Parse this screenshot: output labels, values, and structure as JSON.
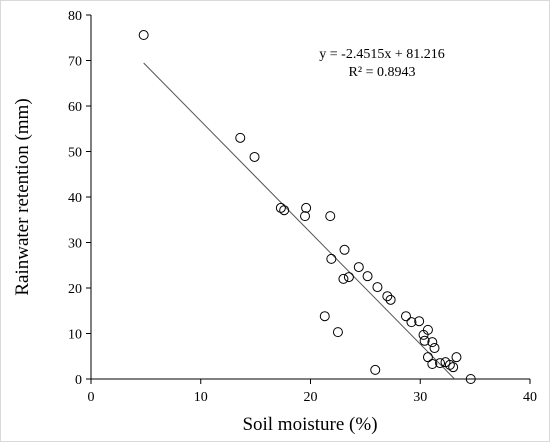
{
  "chart_data": {
    "type": "scatter",
    "x_label": "Soil moisture (%)",
    "y_label": "Rainwater retention (mm)",
    "xlim": [
      0,
      40
    ],
    "xticks": [
      0,
      10,
      20,
      30,
      40
    ],
    "ylim": [
      0,
      80
    ],
    "yticks": [
      0,
      10,
      20,
      30,
      40,
      50,
      60,
      70,
      80
    ],
    "series": [
      {
        "color": "#000000",
        "x": [
          4.8,
          13.6,
          14.9,
          17.3,
          17.6,
          19.6,
          19.5,
          21.8,
          21.9,
          23.1,
          23.0,
          23.5,
          24.4,
          25.2,
          26.1,
          27.0,
          27.3,
          21.3,
          22.5,
          25.9,
          28.7,
          29.2,
          29.9,
          30.3,
          30.4,
          30.7,
          31.1,
          31.3,
          30.7,
          31.1,
          31.8,
          32.3,
          32.7,
          33.0,
          33.3,
          34.6
        ],
        "values": [
          75.6,
          53.0,
          48.8,
          37.6,
          37.1,
          37.6,
          35.8,
          35.8,
          26.4,
          28.4,
          22.0,
          22.4,
          24.6,
          22.6,
          20.2,
          18.2,
          17.4,
          13.8,
          10.3,
          2.0,
          13.8,
          12.5,
          12.7,
          9.7,
          8.4,
          10.8,
          8.1,
          6.8,
          4.8,
          3.3,
          3.5,
          3.7,
          3.1,
          2.6,
          4.8,
          0
        ]
      }
    ],
    "trendline": {
      "equation": "y = -2.4515x + 81.216",
      "r2": "R² = 0.8943",
      "slope": -2.4515,
      "intercept": 81.216,
      "color": "#555555"
    }
  }
}
